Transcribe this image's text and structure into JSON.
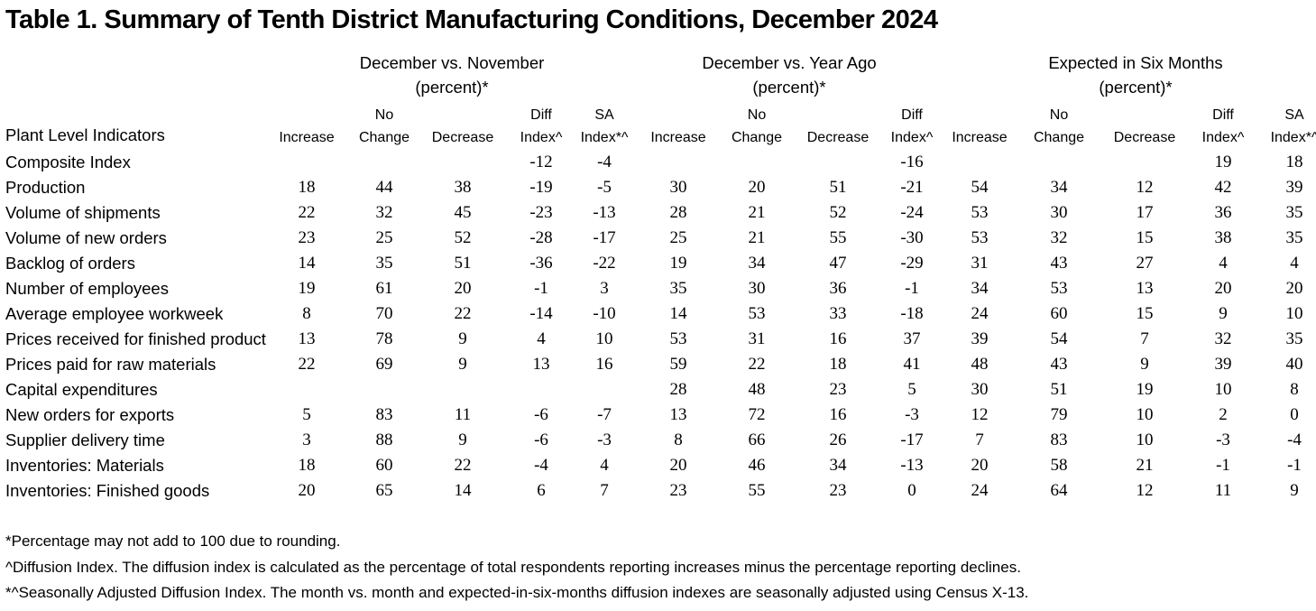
{
  "title": "Table 1. Summary of Tenth District Manufacturing Conditions, December 2024",
  "groups": [
    {
      "line1": "December vs. November",
      "line2": "(percent)*"
    },
    {
      "line1": "December vs. Year Ago",
      "line2": "(percent)*"
    },
    {
      "line1": "Expected in Six Months",
      "line2": "(percent)*"
    }
  ],
  "row_header": "Plant Level Indicators",
  "columns": [
    {
      "top": "",
      "bottom": "Increase"
    },
    {
      "top": "No",
      "bottom": "Change"
    },
    {
      "top": "",
      "bottom": "Decrease"
    },
    {
      "top": "Diff",
      "bottom": "Index^"
    },
    {
      "top": "SA",
      "bottom": "Index*^"
    },
    {
      "top": "",
      "bottom": "Increase"
    },
    {
      "top": "No",
      "bottom": "Change"
    },
    {
      "top": "",
      "bottom": "Decrease"
    },
    {
      "top": "Diff",
      "bottom": "Index^"
    },
    {
      "top": "",
      "bottom": "Increase"
    },
    {
      "top": "No",
      "bottom": "Change"
    },
    {
      "top": "",
      "bottom": "Decrease"
    },
    {
      "top": "Diff",
      "bottom": "Index^"
    },
    {
      "top": "SA",
      "bottom": "Index*^"
    }
  ],
  "rows": [
    {
      "label": "Composite Index",
      "values": [
        "",
        "",
        "",
        "-12",
        "-4",
        "",
        "",
        "",
        "-16",
        "",
        "",
        "",
        "19",
        "18"
      ]
    },
    {
      "label": "Production",
      "values": [
        "18",
        "44",
        "38",
        "-19",
        "-5",
        "30",
        "20",
        "51",
        "-21",
        "54",
        "34",
        "12",
        "42",
        "39"
      ]
    },
    {
      "label": "Volume of shipments",
      "values": [
        "22",
        "32",
        "45",
        "-23",
        "-13",
        "28",
        "21",
        "52",
        "-24",
        "53",
        "30",
        "17",
        "36",
        "35"
      ]
    },
    {
      "label": "Volume of new orders",
      "values": [
        "23",
        "25",
        "52",
        "-28",
        "-17",
        "25",
        "21",
        "55",
        "-30",
        "53",
        "32",
        "15",
        "38",
        "35"
      ]
    },
    {
      "label": "Backlog of orders",
      "values": [
        "14",
        "35",
        "51",
        "-36",
        "-22",
        "19",
        "34",
        "47",
        "-29",
        "31",
        "43",
        "27",
        "4",
        "4"
      ]
    },
    {
      "label": "Number of employees",
      "values": [
        "19",
        "61",
        "20",
        "-1",
        "3",
        "35",
        "30",
        "36",
        "-1",
        "34",
        "53",
        "13",
        "20",
        "20"
      ]
    },
    {
      "label": "Average employee workweek",
      "values": [
        "8",
        "70",
        "22",
        "-14",
        "-10",
        "14",
        "53",
        "33",
        "-18",
        "24",
        "60",
        "15",
        "9",
        "10"
      ]
    },
    {
      "label": "Prices received for finished product",
      "values": [
        "13",
        "78",
        "9",
        "4",
        "10",
        "53",
        "31",
        "16",
        "37",
        "39",
        "54",
        "7",
        "32",
        "35"
      ]
    },
    {
      "label": "Prices paid for raw materials",
      "values": [
        "22",
        "69",
        "9",
        "13",
        "16",
        "59",
        "22",
        "18",
        "41",
        "48",
        "43",
        "9",
        "39",
        "40"
      ]
    },
    {
      "label": "Capital expenditures",
      "values": [
        "",
        "",
        "",
        "",
        "",
        "28",
        "48",
        "23",
        "5",
        "30",
        "51",
        "19",
        "10",
        "8"
      ]
    },
    {
      "label": "New orders for exports",
      "values": [
        "5",
        "83",
        "11",
        "-6",
        "-7",
        "13",
        "72",
        "16",
        "-3",
        "12",
        "79",
        "10",
        "2",
        "0"
      ]
    },
    {
      "label": "Supplier delivery time",
      "values": [
        "3",
        "88",
        "9",
        "-6",
        "-3",
        "8",
        "66",
        "26",
        "-17",
        "7",
        "83",
        "10",
        "-3",
        "-4"
      ]
    },
    {
      "label": "Inventories: Materials",
      "values": [
        "18",
        "60",
        "22",
        "-4",
        "4",
        "20",
        "46",
        "34",
        "-13",
        "20",
        "58",
        "21",
        "-1",
        "-1"
      ]
    },
    {
      "label": "Inventories: Finished goods",
      "values": [
        "20",
        "65",
        "14",
        "6",
        "7",
        "23",
        "55",
        "23",
        "0",
        "24",
        "64",
        "12",
        "11",
        "9"
      ]
    }
  ],
  "notes": [
    "*Percentage may not add to 100 due to rounding.",
    "^Diffusion Index. The diffusion index is calculated as the percentage of total respondents reporting increases minus the percentage reporting declines.",
    "*^Seasonally Adjusted Diffusion Index. The month vs. month and expected-in-six-months diffusion indexes are seasonally adjusted using Census X-13."
  ]
}
